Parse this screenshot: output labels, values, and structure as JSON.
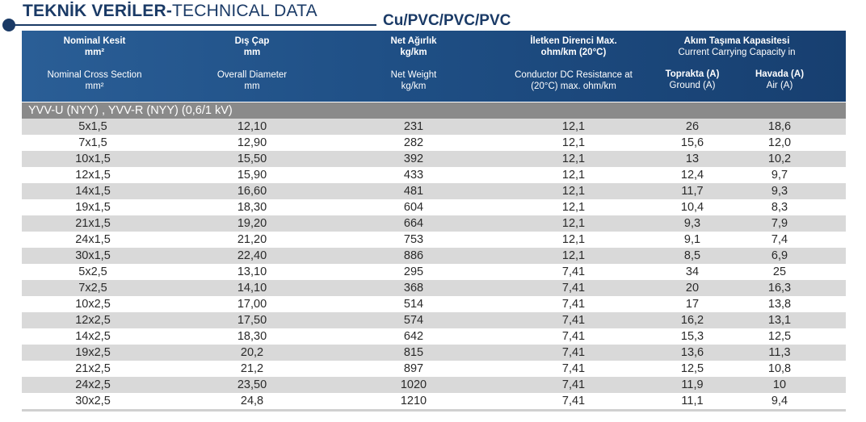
{
  "title": {
    "turkish": "TEKNİK VERİLER-",
    "english": "TECHNICAL DATA"
  },
  "subtitle": "Cu/PVC/PVC/PVC",
  "headers": {
    "col1": {
      "tr": "Nominal Kesit",
      "tr_unit": "mm²",
      "en": "Nominal Cross Section",
      "en_unit": "mm²"
    },
    "col2": {
      "tr": "Dış Çap",
      "tr_unit": "mm",
      "en": "Overall Diameter",
      "en_unit": "mm"
    },
    "col3": {
      "tr": "Net Ağırlık",
      "tr_unit": "kg/km",
      "en": "Net Weight",
      "en_unit": "kg/km"
    },
    "col4": {
      "tr": "İletken Direnci Max.",
      "tr_unit": "ohm/km (20°C)",
      "en_line1": "Conductor DC Resistance at",
      "en_line2": "(20°C) max. ohm/km"
    },
    "col5": {
      "tr": "Akım Taşıma Kapasitesi",
      "en": "Current Carrying Capacity in",
      "ground_tr": "Toprakta (A)",
      "ground_en": "Ground (A)",
      "air_tr": "Havada (A)",
      "air_en": "Air (A)"
    }
  },
  "section_label": "YVV-U (NYY) , YVV-R (NYY) (0,6/1 kV)",
  "rows": [
    [
      "5x1,5",
      "12,10",
      "231",
      "12,1",
      "26",
      "18,6"
    ],
    [
      "7x1,5",
      "12,90",
      "282",
      "12,1",
      "15,6",
      "12,0"
    ],
    [
      "10x1,5",
      "15,50",
      "392",
      "12,1",
      "13",
      "10,2"
    ],
    [
      "12x1,5",
      "15,90",
      "433",
      "12,1",
      "12,4",
      "9,7"
    ],
    [
      "14x1,5",
      "16,60",
      "481",
      "12,1",
      "11,7",
      "9,3"
    ],
    [
      "19x1,5",
      "18,30",
      "604",
      "12,1",
      "10,4",
      "8,3"
    ],
    [
      "21x1,5",
      "19,20",
      "664",
      "12,1",
      "9,3",
      "7,9"
    ],
    [
      "24x1,5",
      "21,20",
      "753",
      "12,1",
      "9,1",
      "7,4"
    ],
    [
      "30x1,5",
      "22,40",
      "886",
      "12,1",
      "8,5",
      "6,9"
    ],
    [
      "5x2,5",
      "13,10",
      "295",
      "7,41",
      "34",
      "25"
    ],
    [
      "7x2,5",
      "14,10",
      "368",
      "7,41",
      "20",
      "16,3"
    ],
    [
      "10x2,5",
      "17,00",
      "514",
      "7,41",
      "17",
      "13,8"
    ],
    [
      "12x2,5",
      "17,50",
      "574",
      "7,41",
      "16,2",
      "13,1"
    ],
    [
      "14x2,5",
      "18,30",
      "642",
      "7,41",
      "15,3",
      "12,5"
    ],
    [
      "19x2,5",
      "20,2",
      "815",
      "7,41",
      "13,6",
      "11,3"
    ],
    [
      "21x2,5",
      "21,2",
      "897",
      "7,41",
      "12,5",
      "10,8"
    ],
    [
      "24x2,5",
      "23,50",
      "1020",
      "7,41",
      "11,9",
      "10"
    ],
    [
      "30x2,5",
      "24,8",
      "1210",
      "7,41",
      "11,1",
      "9,4"
    ]
  ],
  "colors": {
    "brand_blue": "#1a3a66",
    "header_bg": "#1f4f85",
    "section_bg": "#8a8a8a",
    "row_alt": "#d9d9d9"
  }
}
